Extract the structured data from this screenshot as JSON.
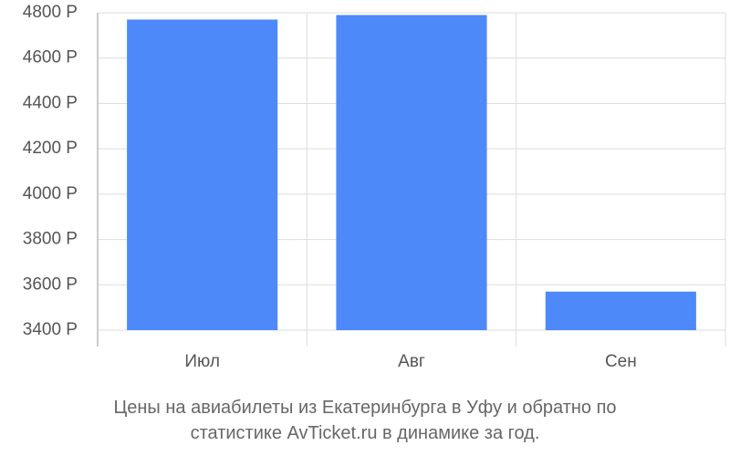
{
  "chart_data": {
    "type": "bar",
    "title": "Цены на авиабилеты из Екатеринбурга в Уфу и обратно по статистике AvTicket.ru в динамике за год.",
    "categories": [
      "Июл",
      "Авг",
      "Сен"
    ],
    "values": [
      4770,
      4790,
      3570
    ],
    "color": "#4d89f9",
    "ylim": [
      3400,
      4800
    ],
    "yticks": [
      {
        "value": 3400,
        "label": "3400 Р"
      },
      {
        "value": 3600,
        "label": "3600 Р"
      },
      {
        "value": 3800,
        "label": "3800 Р"
      },
      {
        "value": 4000,
        "label": "4000 Р"
      },
      {
        "value": 4200,
        "label": "4200 Р"
      },
      {
        "value": 4400,
        "label": "4400 Р"
      },
      {
        "value": 4600,
        "label": "4600 Р"
      },
      {
        "value": 4800,
        "label": "4800 Р"
      }
    ],
    "grid": true
  }
}
